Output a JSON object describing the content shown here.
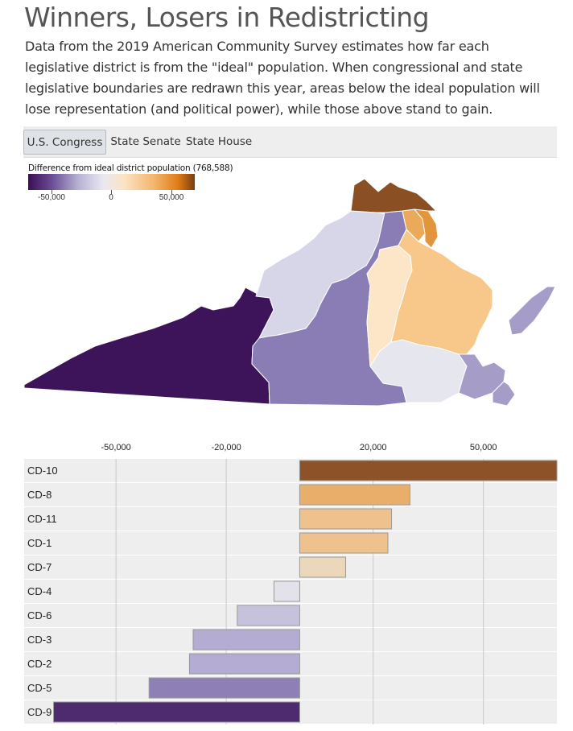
{
  "page": {
    "title": "Winners, Losers in Redistricting",
    "subtitle": "Data from the 2019 American Community Survey estimates how far each legislative district is from the \"ideal\" population. When congressional and state legislative boundaries are redrawn this year, areas below the ideal population will lose representation (and political power), while those above stand to gain."
  },
  "tabs": [
    {
      "label": "U.S. Congress",
      "active": true
    },
    {
      "label": "State Senate",
      "active": false
    },
    {
      "label": "State House",
      "active": false
    }
  ],
  "legend": {
    "title": "Difference from ideal district population (768,588)",
    "ticks": [
      "-50,000",
      "0",
      "50,000"
    ],
    "colors": [
      "#3b0f57",
      "#6a4c95",
      "#b7b1d3",
      "#e9e8f1",
      "#fbe3c2",
      "#f3b46a",
      "#e07c16",
      "#7a3d0e"
    ]
  },
  "map": {
    "region": "Virginia congressional districts",
    "district_colors": {
      "CD-9": "#3d1459",
      "CD-5": "#8a7db5",
      "CD-2": "#a59dc8",
      "CD-3": "#a59dc8",
      "CD-6": "#d7d5e8",
      "CD-4": "#e6e6ef",
      "CD-7": "#fde6c8",
      "CD-1": "#f8c88a",
      "CD-11": "#eba95a",
      "CD-8": "#e2953c",
      "CD-10": "#8b4f24"
    }
  },
  "chart_data": {
    "type": "bar",
    "orientation": "horizontal",
    "categories": [
      "CD-10",
      "CD-8",
      "CD-11",
      "CD-1",
      "CD-7",
      "CD-4",
      "CD-6",
      "CD-3",
      "CD-2",
      "CD-5",
      "CD-9"
    ],
    "values": [
      70000,
      30000,
      25000,
      24000,
      12500,
      -7000,
      -17000,
      -29000,
      -30000,
      -41000,
      -67000
    ],
    "colors": [
      "#8d5228",
      "#e9ae6a",
      "#eec18d",
      "#eec18d",
      "#ebd8bb",
      "#e3e2ea",
      "#c6c2dc",
      "#b4acd2",
      "#b4acd2",
      "#8e80b4",
      "#4e2a6e"
    ],
    "xlim": [
      -75000,
      70000
    ],
    "x_ticks": [
      {
        "value": -50000,
        "label": "-50,000"
      },
      {
        "value": -20000,
        "label": "-20,000"
      },
      {
        "value": 20000,
        "label": "20,000"
      },
      {
        "value": 50000,
        "label": "50,000"
      }
    ],
    "title": "",
    "xlabel": "",
    "ylabel": "",
    "grid": true,
    "legend": "none"
  }
}
